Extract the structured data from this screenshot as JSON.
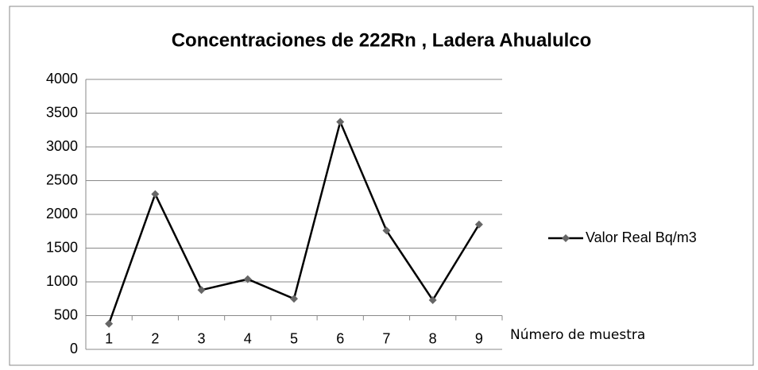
{
  "chart_data": {
    "type": "line",
    "title": "Concentraciones de 222Rn , Ladera Ahualulco",
    "x_label": "Número de muestra",
    "categories": [
      "1",
      "2",
      "3",
      "4",
      "5",
      "6",
      "7",
      "8",
      "9"
    ],
    "series": [
      {
        "name": "Valor Real Bq/m3",
        "color": "#000000",
        "marker_color": "#666666",
        "values": [
          380,
          2300,
          880,
          1040,
          750,
          3370,
          1760,
          730,
          1850
        ]
      }
    ],
    "ylim": [
      0,
      4000
    ],
    "yticks": [
      0,
      500,
      1000,
      1500,
      2000,
      2500,
      3000,
      3500,
      4000
    ],
    "grid": true,
    "legend": "right"
  }
}
